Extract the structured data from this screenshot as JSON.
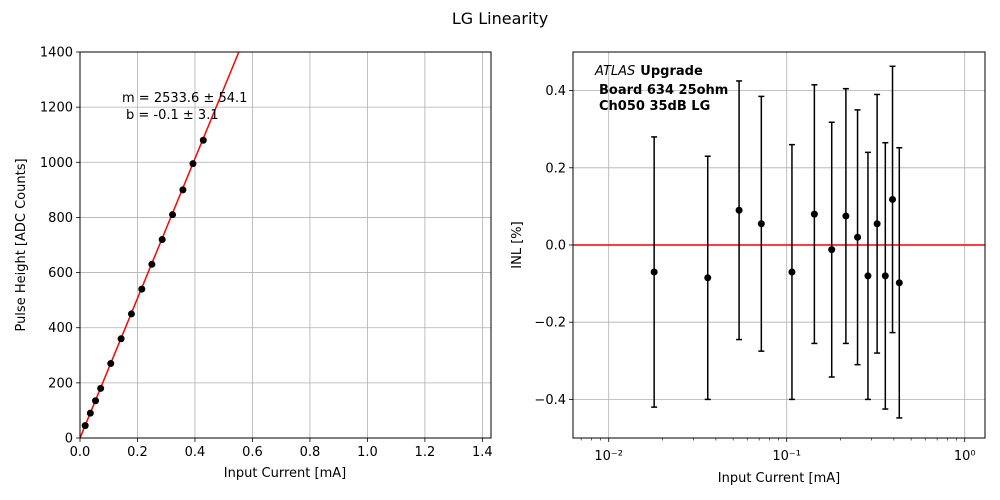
{
  "figure": {
    "suptitle": "LG Linearity"
  },
  "chart_data": [
    {
      "type": "scatter",
      "xlabel": "Input Current [mA]",
      "ylabel": "Pulse Height [ADC Counts]",
      "xlim": [
        0,
        1.43
      ],
      "ylim": [
        0,
        1400
      ],
      "xticks": [
        0.0,
        0.2,
        0.4,
        0.6,
        0.8,
        1.0,
        1.2,
        1.4
      ],
      "xtick_labels": [
        "0.0",
        "0.2",
        "0.4",
        "0.6",
        "0.8",
        "1.0",
        "1.2",
        "1.4"
      ],
      "yticks": [
        0,
        200,
        400,
        600,
        800,
        1000,
        1200,
        1400
      ],
      "ytick_labels": [
        "0",
        "200",
        "400",
        "600",
        "800",
        "1000",
        "1200",
        "1400"
      ],
      "grid": true,
      "series": [
        {
          "kind": "points",
          "color": "#000000",
          "x": [
            0.018,
            0.036,
            0.054,
            0.072,
            0.107,
            0.143,
            0.179,
            0.215,
            0.25,
            0.286,
            0.322,
            0.358,
            0.393,
            0.429
          ],
          "y": [
            45,
            90,
            135,
            180,
            270,
            360,
            450,
            540,
            630,
            720,
            810,
            900,
            995,
            1080
          ]
        },
        {
          "kind": "fit-line",
          "color": "#ff0000",
          "slope": 2533.6,
          "intercept": -0.1
        }
      ],
      "annotations": [
        "m = 2533.6 ± 54.1",
        "b = -0.1 ± 3.1"
      ]
    },
    {
      "type": "scatter",
      "xlabel": "Input Current [mA]",
      "ylabel": "INL [%]",
      "xscale": "log",
      "xlim": [
        0.0063,
        1.3
      ],
      "ylim": [
        -0.5,
        0.5
      ],
      "xticks": [
        0.01,
        0.1,
        1.0
      ],
      "xtick_labels": [
        "10⁻²",
        "10⁻¹",
        "10⁰"
      ],
      "yticks": [
        -0.4,
        -0.2,
        0.0,
        0.2,
        0.4
      ],
      "ytick_labels": [
        "−0.4",
        "−0.2",
        "0.0",
        "0.2",
        "0.4"
      ],
      "grid": true,
      "series": [
        {
          "kind": "errorbar",
          "color": "#000000",
          "x": [
            0.018,
            0.036,
            0.054,
            0.072,
            0.107,
            0.143,
            0.179,
            0.215,
            0.25,
            0.286,
            0.322,
            0.358,
            0.393,
            0.429
          ],
          "y": [
            -0.07,
            -0.085,
            0.09,
            0.055,
            -0.07,
            0.08,
            -0.012,
            0.075,
            0.02,
            -0.08,
            0.055,
            -0.08,
            0.118,
            -0.098
          ],
          "yerr": [
            0.35,
            0.315,
            0.335,
            0.33,
            0.33,
            0.335,
            0.33,
            0.33,
            0.33,
            0.32,
            0.335,
            0.345,
            0.345,
            0.35
          ]
        },
        {
          "kind": "hline",
          "color": "#ff0000",
          "y": 0.0
        }
      ],
      "annotations": {
        "atlas": "ATLAS",
        "upgrade": "Upgrade",
        "board": "Board 634 25ohm",
        "channel": "Ch050 35dB LG"
      }
    }
  ]
}
